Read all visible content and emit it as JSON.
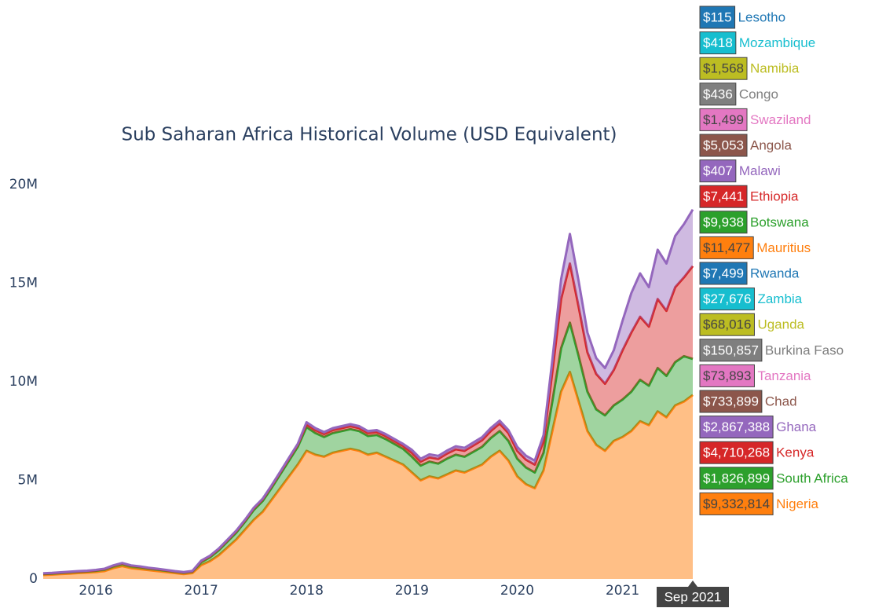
{
  "chart_data": {
    "type": "stacked_area",
    "title": "Sub Saharan Africa Historical Volume (USD Equivalent)",
    "x": [
      "Jul 2015",
      "Aug 2015",
      "Sep 2015",
      "Oct 2015",
      "Nov 2015",
      "Dec 2015",
      "Jan 2016",
      "Feb 2016",
      "Mar 2016",
      "Apr 2016",
      "May 2016",
      "Jun 2016",
      "Jul 2016",
      "Aug 2016",
      "Sep 2016",
      "Oct 2016",
      "Nov 2016",
      "Dec 2016",
      "Jan 2017",
      "Feb 2017",
      "Mar 2017",
      "Apr 2017",
      "May 2017",
      "Jun 2017",
      "Jul 2017",
      "Aug 2017",
      "Sep 2017",
      "Oct 2017",
      "Nov 2017",
      "Dec 2017",
      "Jan 2018",
      "Feb 2018",
      "Mar 2018",
      "Apr 2018",
      "May 2018",
      "Jun 2018",
      "Jul 2018",
      "Aug 2018",
      "Sep 2018",
      "Oct 2018",
      "Nov 2018",
      "Dec 2018",
      "Jan 2019",
      "Feb 2019",
      "Mar 2019",
      "Apr 2019",
      "May 2019",
      "Jun 2019",
      "Jul 2019",
      "Aug 2019",
      "Sep 2019",
      "Oct 2019",
      "Nov 2019",
      "Dec 2019",
      "Jan 2020",
      "Feb 2020",
      "Mar 2020",
      "Apr 2020",
      "May 2020",
      "Jun 2020",
      "Jul 2020",
      "Aug 2020",
      "Sep 2020",
      "Oct 2020",
      "Nov 2020",
      "Dec 2020",
      "Jan 2021",
      "Feb 2021",
      "Mar 2021",
      "Apr 2021",
      "May 2021",
      "Jun 2021",
      "Jul 2021",
      "Aug 2021",
      "Sep 2021"
    ],
    "series": [
      {
        "name": "Nigeria",
        "color": "#ff7f0e",
        "values": [
          200000,
          220000,
          250000,
          270000,
          300000,
          320000,
          350000,
          400000,
          550000,
          650000,
          550000,
          500000,
          450000,
          400000,
          350000,
          300000,
          250000,
          300000,
          700000,
          900000,
          1200000,
          1600000,
          2000000,
          2500000,
          3000000,
          3400000,
          4000000,
          4600000,
          5200000,
          5800000,
          6500000,
          6300000,
          6200000,
          6400000,
          6500000,
          6600000,
          6500000,
          6300000,
          6400000,
          6200000,
          6000000,
          5800000,
          5400000,
          5000000,
          5200000,
          5100000,
          5300000,
          5500000,
          5400000,
          5600000,
          5800000,
          6200000,
          6500000,
          6000000,
          5200000,
          4800000,
          4600000,
          5500000,
          7500000,
          9500000,
          10500000,
          9000000,
          7500000,
          6800000,
          6500000,
          7000000,
          7200000,
          7500000,
          8000000,
          7800000,
          8500000,
          8200000,
          8800000,
          9000000,
          9332814
        ]
      },
      {
        "name": "South Africa",
        "color": "#2ca02c",
        "values": [
          50000,
          50000,
          50000,
          60000,
          60000,
          60000,
          70000,
          80000,
          100000,
          120000,
          100000,
          100000,
          80000,
          80000,
          70000,
          60000,
          60000,
          70000,
          150000,
          200000,
          250000,
          300000,
          350000,
          400000,
          500000,
          550000,
          600000,
          700000,
          800000,
          900000,
          1200000,
          1100000,
          1000000,
          1000000,
          1000000,
          1000000,
          1000000,
          950000,
          900000,
          900000,
          850000,
          800000,
          800000,
          750000,
          750000,
          750000,
          800000,
          800000,
          800000,
          850000,
          900000,
          950000,
          1000000,
          1000000,
          900000,
          850000,
          800000,
          900000,
          1500000,
          2200000,
          2500000,
          2300000,
          2000000,
          1800000,
          1800000,
          1800000,
          1900000,
          2000000,
          2100000,
          2000000,
          2200000,
          2100000,
          2200000,
          2300000,
          1826899
        ]
      },
      {
        "name": "Kenya",
        "color": "#d62728",
        "values": [
          20000,
          20000,
          20000,
          20000,
          20000,
          20000,
          20000,
          20000,
          20000,
          20000,
          20000,
          20000,
          20000,
          20000,
          20000,
          20000,
          20000,
          20000,
          50000,
          50000,
          60000,
          60000,
          70000,
          70000,
          80000,
          80000,
          90000,
          90000,
          100000,
          100000,
          150000,
          150000,
          150000,
          150000,
          150000,
          150000,
          150000,
          150000,
          150000,
          150000,
          150000,
          150000,
          200000,
          200000,
          220000,
          240000,
          260000,
          280000,
          300000,
          320000,
          340000,
          360000,
          380000,
          400000,
          400000,
          400000,
          400000,
          600000,
          1500000,
          2500000,
          3000000,
          2500000,
          2000000,
          1800000,
          1600000,
          1800000,
          2500000,
          3000000,
          3200000,
          3000000,
          3500000,
          3300000,
          3800000,
          4000000,
          4710268
        ]
      },
      {
        "name": "Ghana",
        "color": "#9467bd",
        "values": [
          20000,
          20000,
          20000,
          20000,
          20000,
          20000,
          20000,
          20000,
          20000,
          20000,
          20000,
          20000,
          20000,
          20000,
          20000,
          20000,
          20000,
          20000,
          30000,
          30000,
          30000,
          35000,
          35000,
          40000,
          40000,
          40000,
          45000,
          45000,
          50000,
          50000,
          100000,
          100000,
          100000,
          100000,
          100000,
          100000,
          100000,
          100000,
          100000,
          100000,
          100000,
          100000,
          150000,
          150000,
          150000,
          150000,
          150000,
          150000,
          150000,
          150000,
          150000,
          150000,
          150000,
          150000,
          200000,
          200000,
          200000,
          300000,
          600000,
          1000000,
          1500000,
          1300000,
          1000000,
          800000,
          800000,
          1000000,
          1500000,
          2000000,
          2200000,
          2000000,
          2500000,
          2400000,
          2600000,
          2700000,
          2867388
        ]
      }
    ],
    "ylim": [
      0,
      21000000
    ],
    "yticks": [
      0,
      {
        "value": 5000000,
        "label": "5M"
      },
      {
        "value": 10000000,
        "label": "10M"
      },
      {
        "value": 15000000,
        "label": "15M"
      },
      {
        "value": 20000000,
        "label": "20M"
      }
    ],
    "xticks": [
      {
        "value": "Jan 2016",
        "label": "2016"
      },
      {
        "value": "Jan 2017",
        "label": "2017"
      },
      {
        "value": "Jan 2018",
        "label": "2018"
      },
      {
        "value": "Jan 2019",
        "label": "2019"
      },
      {
        "value": "Jan 2020",
        "label": "2020"
      },
      {
        "value": "Jan 2021",
        "label": "2021"
      }
    ],
    "hover": {
      "x": "Sep 2021",
      "items": [
        {
          "name": "Lesotho",
          "color": "#1f77b4",
          "value": 115,
          "value_label": "$115"
        },
        {
          "name": "Mozambique",
          "color": "#17becf",
          "value": 418,
          "value_label": "$418"
        },
        {
          "name": "Namibia",
          "color": "#bcbd22",
          "value": 1568,
          "value_label": "$1,568"
        },
        {
          "name": "Congo",
          "color": "#7f7f7f",
          "value": 436,
          "value_label": "$436"
        },
        {
          "name": "Swaziland",
          "color": "#e377c2",
          "value": 1499,
          "value_label": "$1,499"
        },
        {
          "name": "Angola",
          "color": "#8c564b",
          "value": 5053,
          "value_label": "$5,053"
        },
        {
          "name": "Malawi",
          "color": "#9467bd",
          "value": 407,
          "value_label": "$407"
        },
        {
          "name": "Ethiopia",
          "color": "#d62728",
          "value": 7441,
          "value_label": "$7,441"
        },
        {
          "name": "Botswana",
          "color": "#2ca02c",
          "value": 9938,
          "value_label": "$9,938"
        },
        {
          "name": "Mauritius",
          "color": "#ff7f0e",
          "value": 11477,
          "value_label": "$11,477"
        },
        {
          "name": "Rwanda",
          "color": "#1f77b4",
          "value": 7499,
          "value_label": "$7,499"
        },
        {
          "name": "Zambia",
          "color": "#17becf",
          "value": 27676,
          "value_label": "$27,676"
        },
        {
          "name": "Uganda",
          "color": "#bcbd22",
          "value": 68016,
          "value_label": "$68,016"
        },
        {
          "name": "Burkina Faso",
          "color": "#7f7f7f",
          "value": 150857,
          "value_label": "$150,857"
        },
        {
          "name": "Tanzania",
          "color": "#e377c2",
          "value": 73893,
          "value_label": "$73,893"
        },
        {
          "name": "Chad",
          "color": "#8c564b",
          "value": 733899,
          "value_label": "$733,899"
        },
        {
          "name": "Ghana",
          "color": "#9467bd",
          "value": 2867388,
          "value_label": "$2,867,388"
        },
        {
          "name": "Kenya",
          "color": "#d62728",
          "value": 4710268,
          "value_label": "$4,710,268"
        },
        {
          "name": "South Africa",
          "color": "#2ca02c",
          "value": 1826899,
          "value_label": "$1,826,899"
        },
        {
          "name": "Nigeria",
          "color": "#ff7f0e",
          "value": 9332814,
          "value_label": "$9,332,814"
        }
      ]
    }
  }
}
